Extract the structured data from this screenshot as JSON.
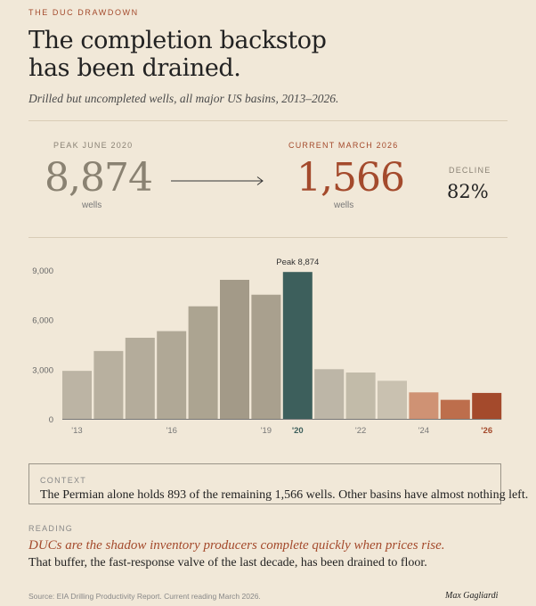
{
  "kicker": "THE DUC DRAWDOWN",
  "title_lines": [
    "The completion backstop",
    "has been drained."
  ],
  "subtitle": "Drilled but uncompleted wells, all major US basins, 2013–2026.",
  "stats": {
    "peak": {
      "label": "PEAK JUNE 2020",
      "value": "8,874",
      "unit": "wells"
    },
    "current": {
      "label": "CURRENT MARCH 2026",
      "value": "1,566",
      "unit": "wells"
    },
    "decline": {
      "label": "DECLINE",
      "value": "82%"
    }
  },
  "colors": {
    "background": "#f1e8d8",
    "accent": "#a44a2c",
    "peak_bar": "#3d5f5c",
    "neutral_bar_light": "#bcb4a4",
    "neutral_bar_dark": "#a39a88",
    "recent_bar": "#cf9274"
  },
  "chart_data": {
    "type": "bar",
    "x": [
      2013,
      2014,
      2015,
      2016,
      2017,
      2018,
      2019,
      2020,
      2021,
      2022,
      2023,
      2024,
      2025,
      2026
    ],
    "values": [
      2900,
      4100,
      4900,
      5300,
      6800,
      8400,
      7500,
      8874,
      3000,
      2800,
      2300,
      1600,
      1150,
      1566
    ],
    "bar_colors": [
      "#bcb4a4",
      "#b8b09f",
      "#b4ac9b",
      "#b0a896",
      "#aca491",
      "#a39a88",
      "#a9a08e",
      "#3d5f5c",
      "#bdb6a7",
      "#c2bba9",
      "#c9c1b0",
      "#cf9274",
      "#bd6e4c",
      "#a44a2c"
    ],
    "x_tick_labels": [
      "'13",
      "",
      "",
      "'16",
      "",
      "",
      "'19",
      "'20",
      "",
      "'22",
      "",
      "'24",
      "",
      "'26"
    ],
    "y_ticks": [
      0,
      3000,
      6000,
      9000
    ],
    "y_tick_labels": [
      "0",
      "3,000",
      "6,000",
      "9,000"
    ],
    "ylim": [
      0,
      9800
    ],
    "annotation": {
      "index": 7,
      "text": "Peak 8,874"
    },
    "grid": false
  },
  "context": {
    "label": "CONTEXT",
    "text": "The Permian alone holds 893 of the remaining 1,566 wells. Other basins have almost nothing left."
  },
  "reading": {
    "label": "READING",
    "emphasis": "DUCs are the shadow inventory producers complete quickly when prices rise.",
    "text": "That buffer, the fast-response valve of the last decade, has been drained to floor."
  },
  "source": "Source: EIA Drilling Productivity Report. Current reading March 2026.",
  "byline": "Max Gagliardi"
}
